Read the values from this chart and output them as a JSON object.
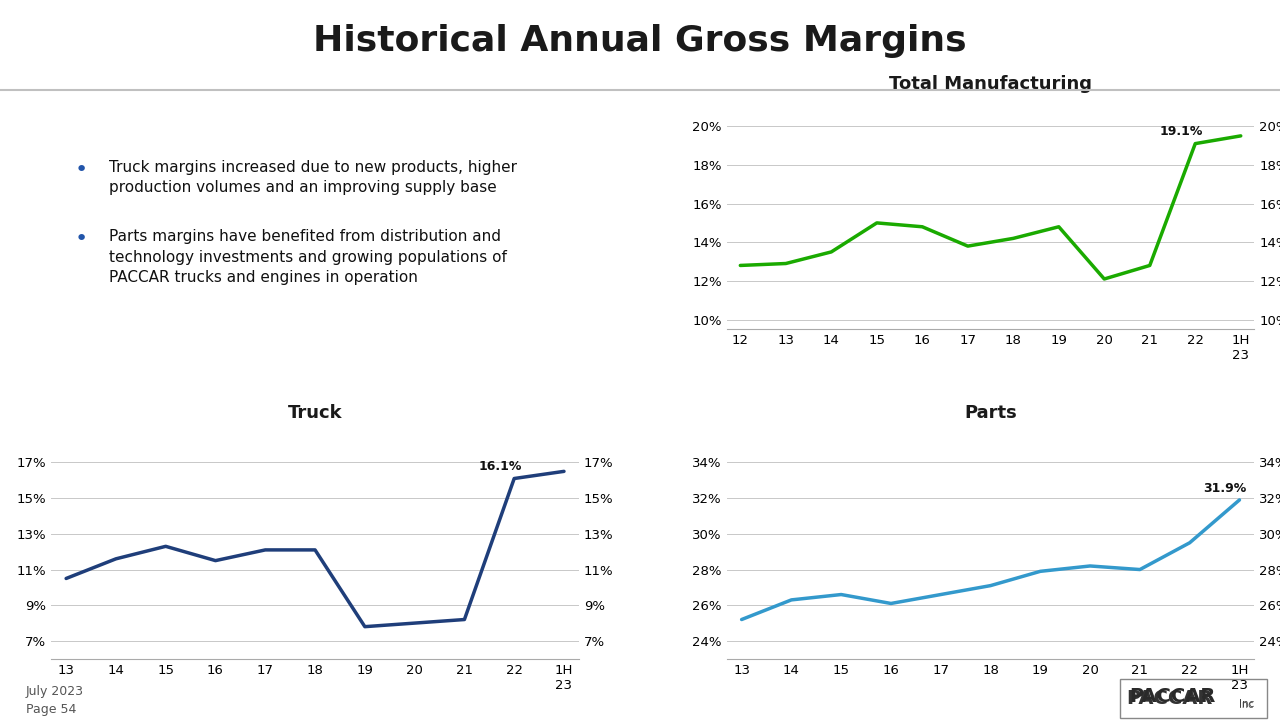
{
  "title": "Historical Annual Gross Margins",
  "bg_color": "#e8e8e8",
  "title_bg": "#ffffff",
  "total_mfg": {
    "title": "Total Manufacturing",
    "x_labels": [
      "12",
      "13",
      "14",
      "15",
      "16",
      "17",
      "18",
      "19",
      "20",
      "21",
      "22",
      "1H\n23"
    ],
    "values": [
      12.8,
      12.9,
      13.5,
      15.0,
      14.8,
      13.8,
      14.2,
      14.8,
      12.1,
      12.8,
      19.1,
      19.5
    ],
    "color": "#1aaa00",
    "yticks": [
      10,
      12,
      14,
      16,
      18,
      20
    ],
    "ylim": [
      9.5,
      21.5
    ],
    "annotation": "19.1%",
    "annotation_idx": 10,
    "line_width": 2.5
  },
  "truck": {
    "title": "Truck",
    "x_labels": [
      "13",
      "14",
      "15",
      "16",
      "17",
      "18",
      "19",
      "20",
      "21",
      "22",
      "1H\n23"
    ],
    "values": [
      10.5,
      11.6,
      12.3,
      11.5,
      12.1,
      12.1,
      7.8,
      8.0,
      8.2,
      16.1,
      16.5
    ],
    "color": "#1f3e7a",
    "yticks": [
      7,
      9,
      11,
      13,
      15,
      17
    ],
    "ylim": [
      6.0,
      19.0
    ],
    "annotation": "16.1%",
    "annotation_idx": 9,
    "line_width": 2.5
  },
  "parts": {
    "title": "Parts",
    "x_labels": [
      "13",
      "14",
      "15",
      "16",
      "17",
      "18",
      "19",
      "20",
      "21",
      "22",
      "1H\n23"
    ],
    "values": [
      25.2,
      26.3,
      26.6,
      26.1,
      26.6,
      27.1,
      27.9,
      28.2,
      28.0,
      29.5,
      31.9
    ],
    "color": "#3399cc",
    "yticks": [
      24,
      26,
      28,
      30,
      32,
      34
    ],
    "ylim": [
      23.0,
      36.0
    ],
    "annotation": "31.9%",
    "annotation_idx": 10,
    "line_width": 2.5
  },
  "bullet1_line1": "Truck margins increased due to new products, higher",
  "bullet1_line2": "production volumes and an improving supply base",
  "bullet2_line1": "Parts margins have benefited from distribution and",
  "bullet2_line2": "technology investments and growing populations of",
  "bullet2_line3": "PACCAR trucks and engines in operation",
  "footer_left_line1": "July 2023",
  "footer_left_line2": "Page 54"
}
